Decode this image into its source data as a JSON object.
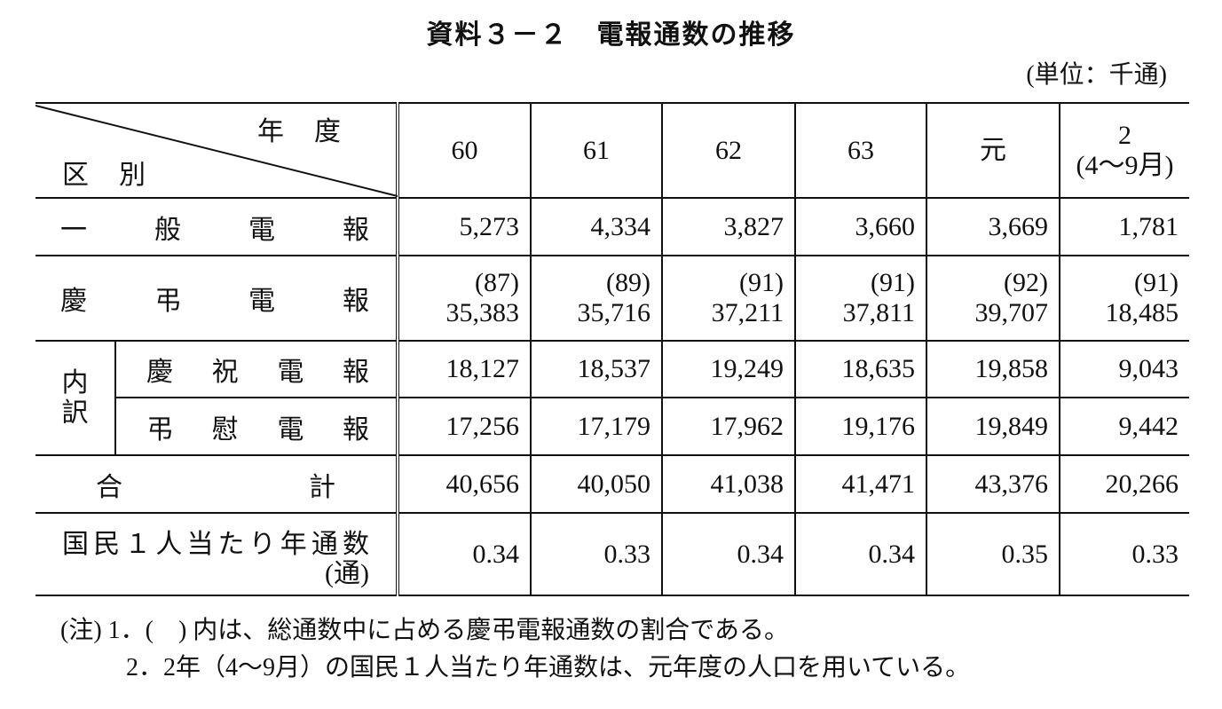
{
  "title": "資料３－２　電報通数の推移",
  "unit": "(単位：千通)",
  "table": {
    "col_header": "年度",
    "row_header": "区別",
    "columns": [
      "60",
      "61",
      "62",
      "63",
      "元",
      "2"
    ],
    "last_column_period": "(4～9月)",
    "rows": [
      {
        "label": "一般電報",
        "values": [
          "5,273",
          "4,334",
          "3,827",
          "3,660",
          "3,669",
          "1,781"
        ]
      },
      {
        "label": "慶弔電報",
        "shares": [
          "(87)",
          "(89)",
          "(91)",
          "(91)",
          "(92)",
          "(91)"
        ],
        "values": [
          "35,383",
          "35,716",
          "37,211",
          "37,811",
          "39,707",
          "18,485"
        ]
      },
      {
        "group": "内訳",
        "items": [
          {
            "label": "慶祝電報",
            "values": [
              "18,127",
              "18,537",
              "19,249",
              "18,635",
              "19,858",
              "9,043"
            ]
          },
          {
            "label": "弔慰電報",
            "values": [
              "17,256",
              "17,179",
              "17,962",
              "19,176",
              "19,849",
              "9,442"
            ]
          }
        ]
      },
      {
        "label": "合計",
        "values": [
          "40,656",
          "40,050",
          "41,038",
          "41,471",
          "43,376",
          "20,266"
        ]
      },
      {
        "label": "国民１人当たり年通数",
        "unit": "(通)",
        "values": [
          "0.34",
          "0.33",
          "0.34",
          "0.34",
          "0.35",
          "0.33"
        ]
      }
    ]
  },
  "notes": {
    "prefix": "(注)",
    "items": [
      "1．(　) 内は、総通数中に占める慶弔電報通数の割合である。",
      "2．2年（4～9月）の国民１人当たり年通数は、元年度の人口を用いている。"
    ]
  }
}
